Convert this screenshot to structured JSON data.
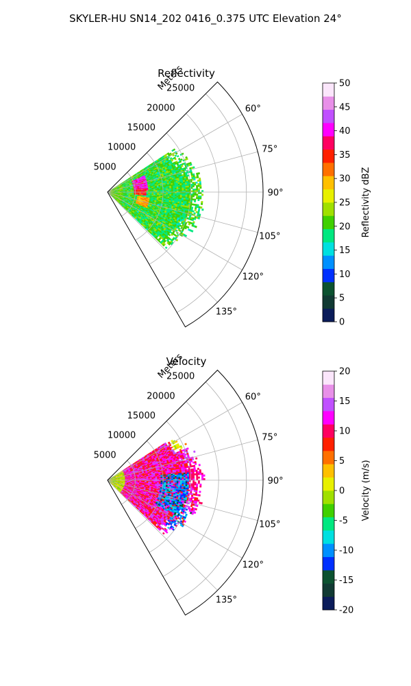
{
  "figure": {
    "title": "SKYLER-HU  SN14_202  0416_0.375 UTC Elevation 24°"
  },
  "chart_data": [
    {
      "type": "heatmap",
      "title": "Reflectivity",
      "projection": "polar-sector",
      "theta_range_deg": [
        45,
        150
      ],
      "theta_ticks": [
        60,
        75,
        90,
        105,
        120,
        135
      ],
      "theta_tick_labels": [
        "60°",
        "75°",
        "90°",
        "105°",
        "120°",
        "135°"
      ],
      "r_range": [
        0,
        28000
      ],
      "r_ticks": [
        5000,
        10000,
        15000,
        20000,
        25000
      ],
      "r_tick_labels": [
        "5000",
        "10000",
        "15000",
        "20000",
        "25000"
      ],
      "r_label": "Meters",
      "grid": true,
      "colorbar": {
        "label": "Reflectivity dBZ",
        "range": [
          0,
          50
        ],
        "ticks": [
          0,
          5,
          10,
          15,
          20,
          25,
          30,
          35,
          40,
          45,
          50
        ],
        "tick_labels": [
          "0",
          "5",
          "10",
          "15",
          "20",
          "25",
          "30",
          "35",
          "40",
          "45",
          "50"
        ],
        "colors": [
          "#0b1c5a",
          "#113a33",
          "#0c5230",
          "#0030ff",
          "#0090ff",
          "#00e0e0",
          "#00e880",
          "#40d000",
          "#a0e000",
          "#e8f000",
          "#ffc000",
          "#ff7000",
          "#ff2000",
          "#ff0060",
          "#ff00ff",
          "#c050ff",
          "#e890e8",
          "#fbe6fb"
        ]
      },
      "data_extent": {
        "theta_deg": [
          57,
          133
        ],
        "r_max": 17000
      },
      "data_summary": "Echo mostly 18-25 dBZ, core 35-45 dBZ near 75-85° at 5000-7000 m"
    },
    {
      "type": "heatmap",
      "title": "Velocity",
      "projection": "polar-sector",
      "theta_range_deg": [
        45,
        150
      ],
      "theta_ticks": [
        60,
        75,
        90,
        105,
        120,
        135
      ],
      "theta_tick_labels": [
        "60°",
        "75°",
        "90°",
        "105°",
        "120°",
        "135°"
      ],
      "r_range": [
        0,
        28000
      ],
      "r_ticks": [
        5000,
        10000,
        15000,
        20000,
        25000
      ],
      "r_tick_labels": [
        "5000",
        "10000",
        "15000",
        "20000",
        "25000"
      ],
      "r_label": "Meters",
      "grid": true,
      "colorbar": {
        "label": "Velocity (m/s)",
        "range": [
          -20,
          20
        ],
        "ticks": [
          -20,
          -15,
          -10,
          -5,
          0,
          5,
          10,
          15,
          20
        ],
        "tick_labels": [
          "-20",
          "-15",
          "-10",
          "-5",
          "0",
          "5",
          "10",
          "15",
          "20"
        ],
        "colors": [
          "#0b1c5a",
          "#113a33",
          "#0c5230",
          "#0030ff",
          "#0090ff",
          "#00e0e0",
          "#00e880",
          "#40d000",
          "#a0e000",
          "#e8f000",
          "#ffc000",
          "#ff7000",
          "#ff2000",
          "#ff0060",
          "#ff00ff",
          "#c050ff",
          "#e890e8",
          "#fbe6fb"
        ]
      },
      "data_extent": {
        "theta_deg": [
          57,
          133
        ],
        "r_max": 17000
      },
      "data_summary": "Mostly +10 to +15 m/s, -10 to -15 m/s streak near 90-115° at 10000-14000 m, 0 to +5 m/s near origin and outer north"
    }
  ]
}
